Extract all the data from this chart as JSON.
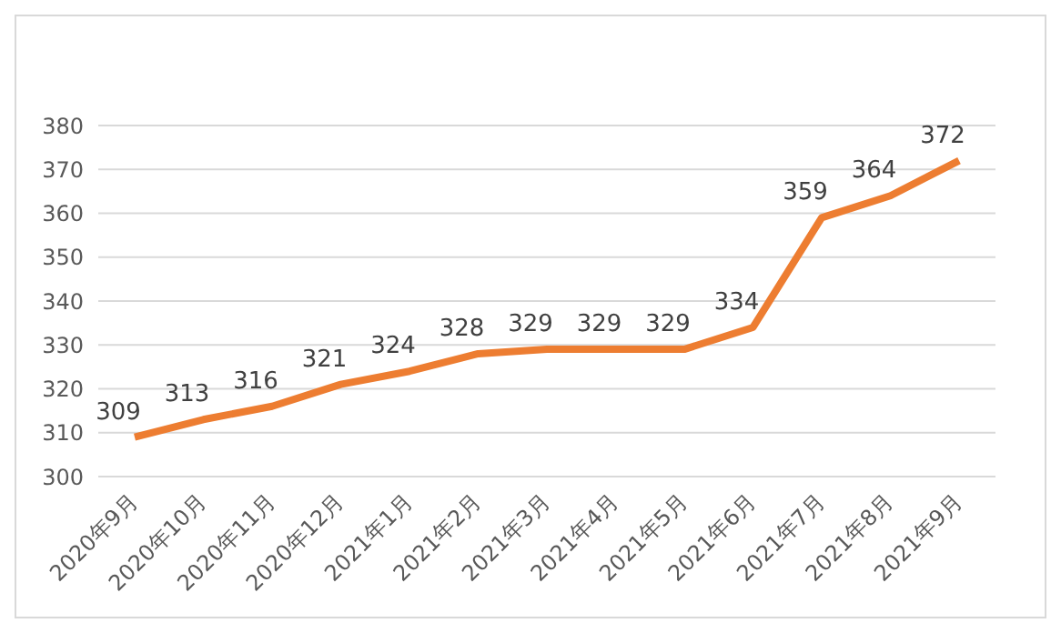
{
  "chart_data": {
    "type": "line",
    "categories": [
      "2020年9月",
      "2020年10月",
      "2020年11月",
      "2020年12月",
      "2021年1月",
      "2021年2月",
      "2021年3月",
      "2021年4月",
      "2021年5月",
      "2021年6月",
      "2021年7月",
      "2021年8月",
      "2021年9月"
    ],
    "series": [
      {
        "color": "#ed7d31",
        "values": [
          309,
          313,
          316,
          321,
          324,
          328,
          329,
          329,
          329,
          334,
          359,
          364,
          372
        ]
      }
    ],
    "ylim": [
      300,
      380
    ],
    "yticks": [
      300,
      310,
      320,
      330,
      340,
      350,
      360,
      370,
      380
    ],
    "grid": "y",
    "data_labels": true,
    "legend": false,
    "marker": "none",
    "line_style": "solid"
  }
}
